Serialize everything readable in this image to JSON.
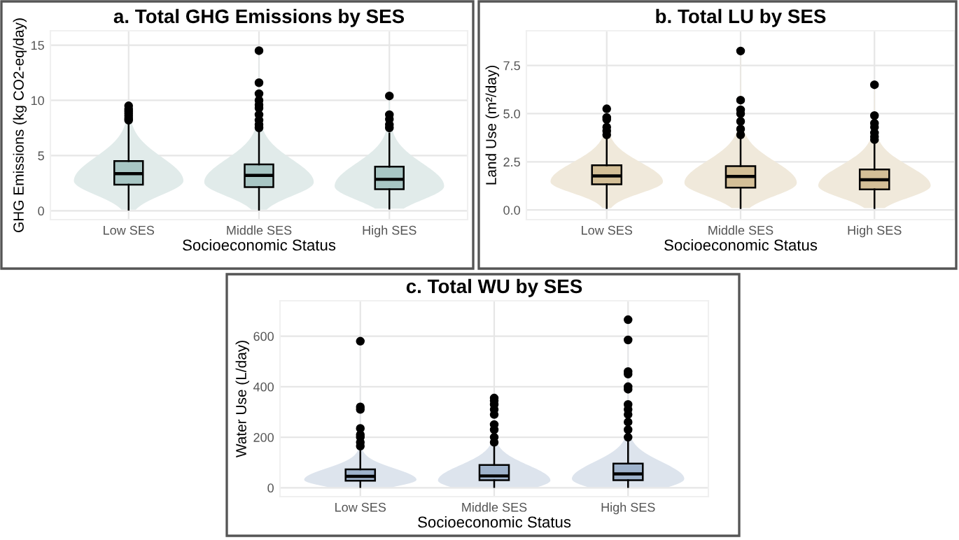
{
  "chart_data": [
    {
      "type": "box",
      "title": "a. Total GHG Emissions by SES",
      "xlabel": "Socioeconomic Status",
      "ylabel": "GHG Emissions (kg CO2-eq/day)",
      "categories": [
        "Low SES",
        "Middle SES",
        "High SES"
      ],
      "color": "#a8c6c4",
      "ylim": [
        -0.8,
        16.3
      ],
      "yticks": [
        0,
        5,
        10,
        15
      ],
      "grid": true,
      "boxes": [
        {
          "low": 0.1,
          "q1": 2.37,
          "median": 3.36,
          "q3": 4.5,
          "high": 7.8,
          "outliers": [
            8.2,
            8.4,
            8.6,
            8.8,
            9.0,
            9.2,
            9.5
          ]
        },
        {
          "low": 0.1,
          "q1": 2.15,
          "median": 3.2,
          "q3": 4.2,
          "high": 7.3,
          "outliers": [
            7.5,
            7.8,
            8.2,
            8.7,
            9.3,
            9.6,
            10.0,
            10.6,
            11.6,
            14.5
          ]
        },
        {
          "low": 0.2,
          "q1": 1.95,
          "median": 2.85,
          "q3": 4.0,
          "high": 7.0,
          "outliers": [
            7.5,
            7.8,
            8.3,
            8.7,
            10.4
          ]
        }
      ]
    },
    {
      "type": "box",
      "title": "b. Total LU by SES",
      "xlabel": "Socioeconomic Status",
      "ylabel": "Land Use (m²/day)",
      "categories": [
        "Low SES",
        "Middle SES",
        "High SES"
      ],
      "color": "#d4bf97",
      "ylim": [
        -0.5,
        9.3
      ],
      "yticks": [
        {
          "value": 0,
          "label": "0.0"
        },
        {
          "value": 2.5,
          "label": "2.5"
        },
        {
          "value": 5,
          "label": "5.0"
        },
        {
          "value": 7.5,
          "label": "7.5"
        }
      ],
      "grid": true,
      "boxes": [
        {
          "low": 0.1,
          "q1": 1.33,
          "median": 1.77,
          "q3": 2.32,
          "high": 3.75,
          "outliers": [
            3.9,
            4.1,
            4.3,
            4.7,
            4.8,
            5.25
          ]
        },
        {
          "low": 0.1,
          "q1": 1.16,
          "median": 1.74,
          "q3": 2.28,
          "high": 3.8,
          "outliers": [
            3.9,
            4.2,
            4.6,
            5.0,
            5.2,
            5.7,
            8.25
          ]
        },
        {
          "low": 0.1,
          "q1": 1.07,
          "median": 1.57,
          "q3": 2.1,
          "high": 3.5,
          "outliers": [
            3.65,
            3.8,
            4.0,
            4.3,
            4.5,
            4.9,
            6.5
          ]
        }
      ]
    },
    {
      "type": "box",
      "title": "c. Total WU by SES",
      "xlabel": "Socioeconomic Status",
      "ylabel": "Water Use (L/day)",
      "categories": [
        "Low SES",
        "Middle SES",
        "High SES"
      ],
      "color": "#9fb3cc",
      "ylim": [
        -35,
        740
      ],
      "yticks": [
        0,
        200,
        400,
        600
      ],
      "grid": true,
      "boxes": [
        {
          "low": 3,
          "q1": 28,
          "median": 45,
          "q3": 73,
          "high": 160,
          "outliers": [
            165,
            180,
            200,
            210,
            235,
            310,
            320,
            580
          ]
        },
        {
          "low": 3,
          "q1": 30,
          "median": 47,
          "q3": 90,
          "high": 170,
          "outliers": [
            180,
            200,
            230,
            250,
            290,
            310,
            330,
            345,
            355
          ]
        },
        {
          "low": 3,
          "q1": 30,
          "median": 55,
          "q3": 96,
          "high": 190,
          "outliers": [
            200,
            230,
            260,
            290,
            310,
            330,
            390,
            400,
            450,
            460,
            585,
            665
          ]
        }
      ]
    }
  ]
}
